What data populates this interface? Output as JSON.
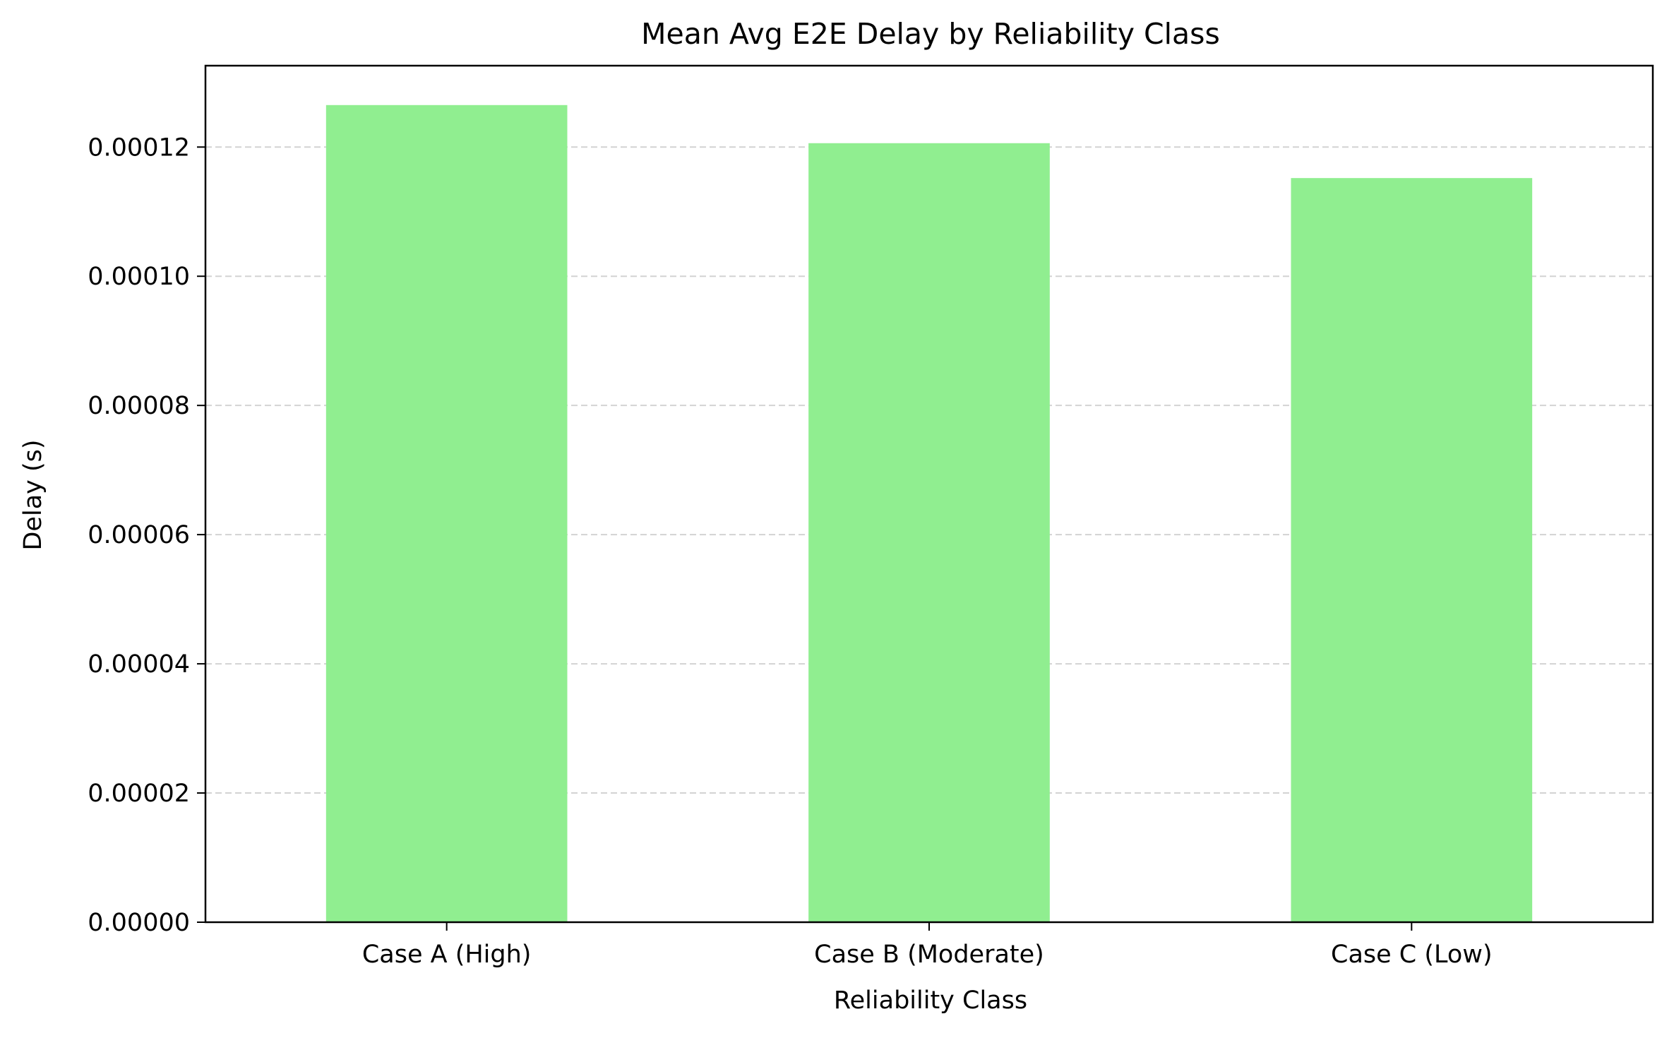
{
  "chart_data": {
    "type": "bar",
    "title": "Mean Avg E2E Delay by Reliability Class",
    "xlabel": "Reliability Class",
    "ylabel": "Delay (s)",
    "categories": [
      "Case A (High)",
      "Case B (Moderate)",
      "Case C (Low)"
    ],
    "values": [
      0.0001265,
      0.0001206,
      0.0001152
    ],
    "ylim": [
      0,
      0.0001326
    ],
    "yticks": [
      0,
      2e-05,
      4e-05,
      6e-05,
      8e-05,
      0.0001,
      0.00012
    ],
    "ytick_labels": [
      "0.00000",
      "0.00002",
      "0.00004",
      "0.00006",
      "0.00008",
      "0.00010",
      "0.00012"
    ],
    "grid": "y-axis dashed",
    "legend": "none",
    "bar_color": "#90ee90",
    "grid_color": "#d3d3d3"
  }
}
